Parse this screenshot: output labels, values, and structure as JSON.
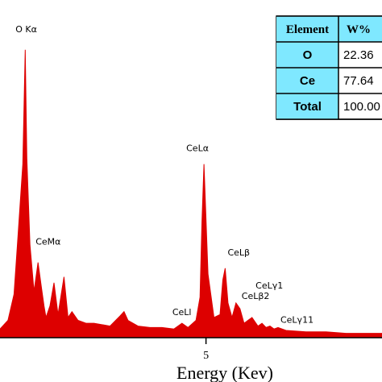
{
  "chart_data": {
    "type": "area",
    "title": "",
    "xlabel": "Energy (Kev)",
    "ylabel": "",
    "xlim": [
      -0.15,
      9.4
    ],
    "ylim": [
      0,
      1.0
    ],
    "x_ticks": [
      5
    ],
    "x_tick_labels": [
      "5"
    ],
    "grid": false,
    "series": [
      {
        "color": "#dd0000",
        "x": [
          -0.15,
          0.05,
          0.2,
          0.3,
          0.42,
          0.48,
          0.52,
          0.6,
          0.7,
          0.8,
          0.88,
          0.95,
          1.0,
          1.1,
          1.2,
          1.3,
          1.45,
          1.55,
          1.65,
          1.8,
          2.0,
          2.2,
          2.6,
          2.85,
          2.95,
          3.05,
          3.3,
          3.6,
          3.9,
          4.2,
          4.4,
          4.55,
          4.75,
          4.85,
          4.9,
          4.95,
          5.05,
          5.2,
          5.35,
          5.42,
          5.48,
          5.55,
          5.65,
          5.75,
          5.85,
          5.95,
          6.05,
          6.15,
          6.3,
          6.4,
          6.5,
          6.6,
          6.7,
          6.8,
          7.0,
          7.5,
          8.0,
          8.5,
          9.0,
          9.4
        ],
        "y": [
          0.03,
          0.06,
          0.15,
          0.35,
          0.6,
          0.995,
          0.62,
          0.32,
          0.16,
          0.26,
          0.18,
          0.11,
          0.07,
          0.11,
          0.19,
          0.08,
          0.21,
          0.07,
          0.09,
          0.06,
          0.05,
          0.05,
          0.04,
          0.075,
          0.09,
          0.06,
          0.04,
          0.035,
          0.035,
          0.03,
          0.05,
          0.035,
          0.06,
          0.14,
          0.4,
          0.6,
          0.22,
          0.07,
          0.08,
          0.2,
          0.24,
          0.12,
          0.07,
          0.12,
          0.1,
          0.05,
          0.06,
          0.07,
          0.04,
          0.05,
          0.035,
          0.04,
          0.03,
          0.035,
          0.025,
          0.02,
          0.02,
          0.015,
          0.015,
          0.015
        ]
      }
    ],
    "annotations": [
      {
        "text": "O Kα",
        "x": 0.48,
        "y": 0.995
      },
      {
        "text": "CeMα",
        "x": 0.7,
        "y": 0.26
      },
      {
        "text": "CeLα",
        "x": 4.95,
        "y": 0.6
      },
      {
        "text": "CeLβ",
        "x": 5.42,
        "y": 0.24
      },
      {
        "text": "CeLγ1",
        "x": 6.2,
        "y": 0.12
      },
      {
        "text": "CeLβ2",
        "x": 5.85,
        "y": 0.1
      },
      {
        "text": "CeLl",
        "x": 4.4,
        "y": 0.05
      },
      {
        "text": "CeLγ11",
        "x": 6.7,
        "y": 0.035
      }
    ],
    "table": {
      "headers": [
        "Element",
        "W%"
      ],
      "rows": [
        [
          "O",
          "22.36"
        ],
        [
          "Ce",
          "77.64"
        ],
        [
          "Total",
          "100.00"
        ]
      ],
      "header_color": "#7fe8ff",
      "symbol_color": "#7fe8ff"
    }
  }
}
